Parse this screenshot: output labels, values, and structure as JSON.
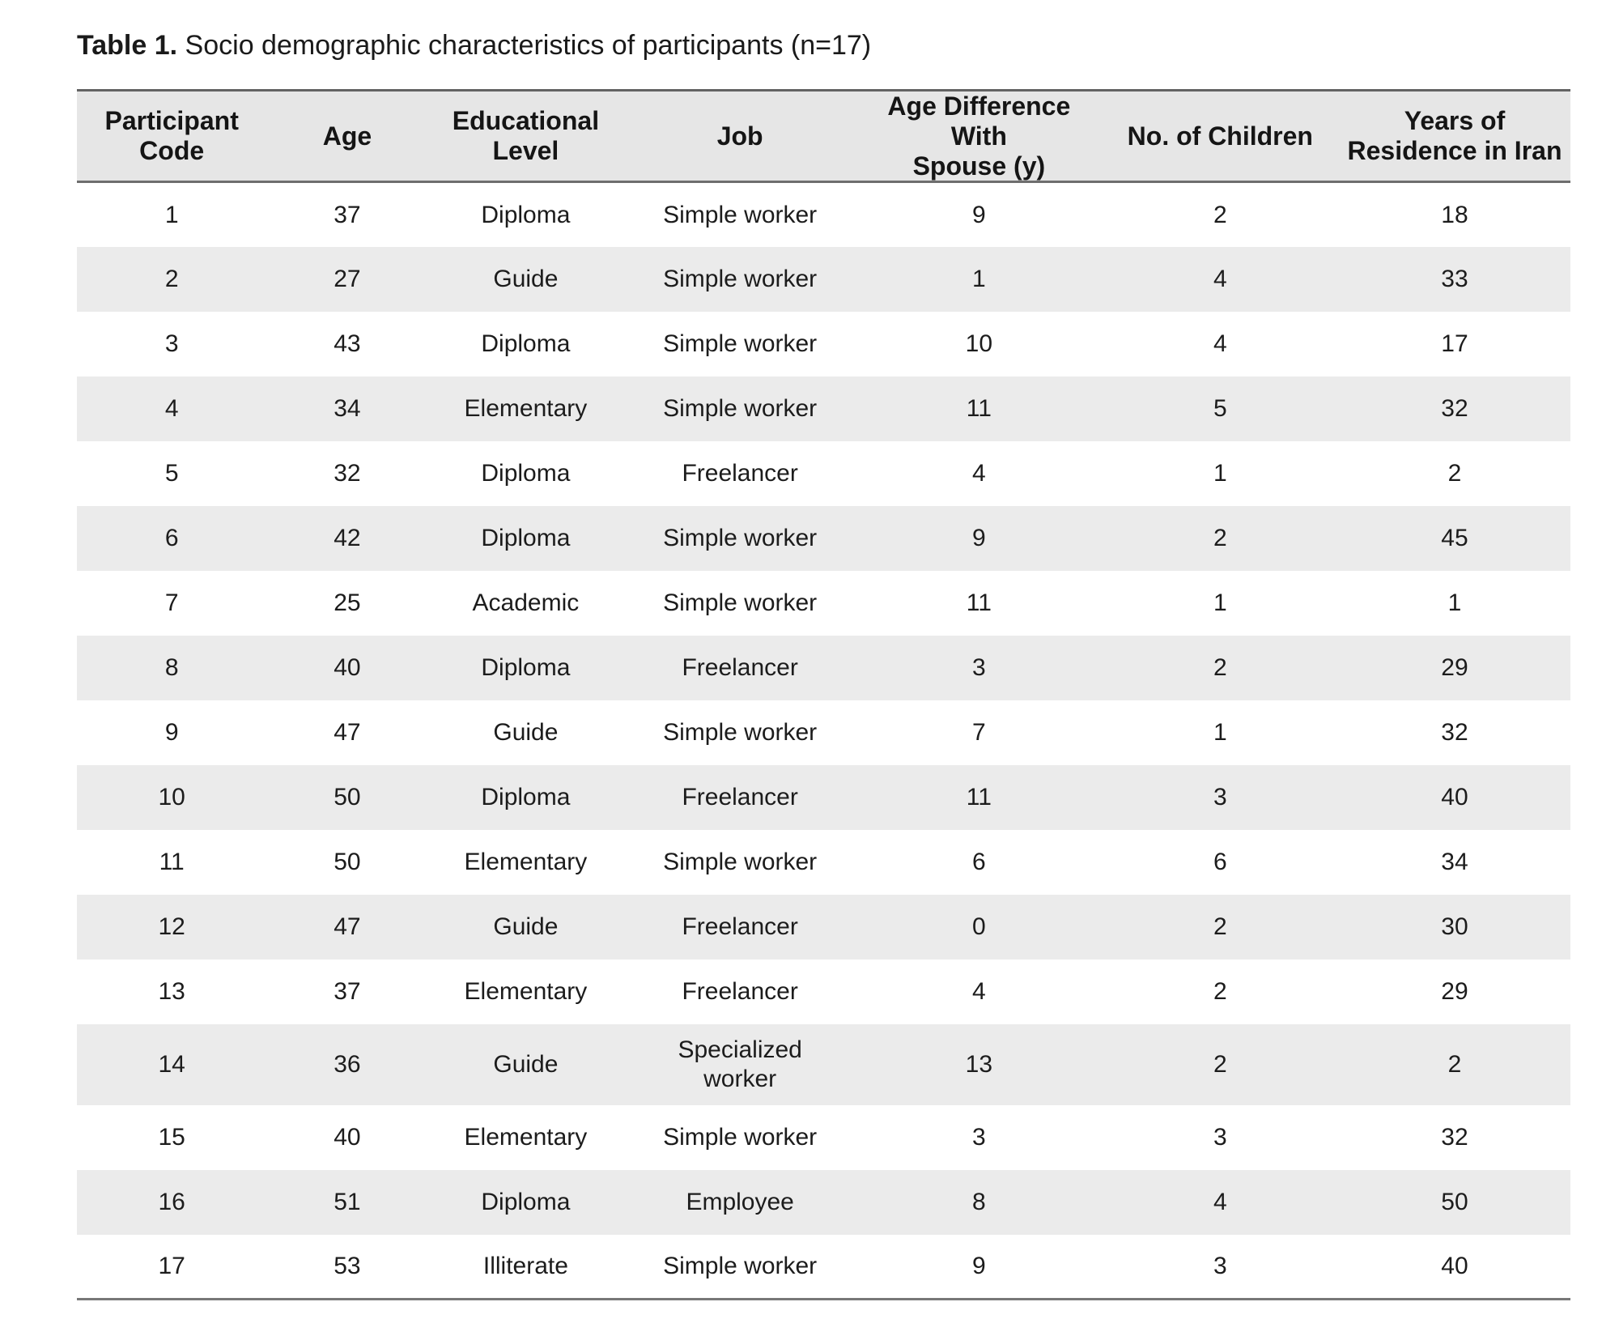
{
  "caption": {
    "label": "Table 1.",
    "text": "Socio demographic characteristics of participants (n=17)"
  },
  "table": {
    "columns": [
      {
        "name": "participant-code",
        "label": "Participant\nCode"
      },
      {
        "name": "age",
        "label": "Age"
      },
      {
        "name": "educational-level",
        "label": "Educational Level"
      },
      {
        "name": "job",
        "label": "Job"
      },
      {
        "name": "age-difference",
        "label": "Age Difference With\nSpouse (y)"
      },
      {
        "name": "no-of-children",
        "label": "No. of Children"
      },
      {
        "name": "years-residence",
        "label": "Years of\nResidence in Iran"
      }
    ],
    "rows": [
      [
        "1",
        "37",
        "Diploma",
        "Simple worker",
        "9",
        "2",
        "18"
      ],
      [
        "2",
        "27",
        "Guide",
        "Simple worker",
        "1",
        "4",
        "33"
      ],
      [
        "3",
        "43",
        "Diploma",
        "Simple worker",
        "10",
        "4",
        "17"
      ],
      [
        "4",
        "34",
        "Elementary",
        "Simple worker",
        "11",
        "5",
        "32"
      ],
      [
        "5",
        "32",
        "Diploma",
        "Freelancer",
        "4",
        "1",
        "2"
      ],
      [
        "6",
        "42",
        "Diploma",
        "Simple worker",
        "9",
        "2",
        "45"
      ],
      [
        "7",
        "25",
        "Academic",
        "Simple worker",
        "11",
        "1",
        "1"
      ],
      [
        "8",
        "40",
        "Diploma",
        "Freelancer",
        "3",
        "2",
        "29"
      ],
      [
        "9",
        "47",
        "Guide",
        "Simple worker",
        "7",
        "1",
        "32"
      ],
      [
        "10",
        "50",
        "Diploma",
        "Freelancer",
        "11",
        "3",
        "40"
      ],
      [
        "11",
        "50",
        "Elementary",
        "Simple worker",
        "6",
        "6",
        "34"
      ],
      [
        "12",
        "47",
        "Guide",
        "Freelancer",
        "0",
        "2",
        "30"
      ],
      [
        "13",
        "37",
        "Elementary",
        "Freelancer",
        "4",
        "2",
        "29"
      ],
      [
        "14",
        "36",
        "Guide",
        "Specialized\nworker",
        "13",
        "2",
        "2"
      ],
      [
        "15",
        "40",
        "Elementary",
        "Simple worker",
        "3",
        "3",
        "32"
      ],
      [
        "16",
        "51",
        "Diploma",
        "Employee",
        "8",
        "4",
        "50"
      ],
      [
        "17",
        "53",
        "Illiterate",
        "Simple worker",
        "9",
        "3",
        "40"
      ]
    ]
  },
  "colors": {
    "header_background": "#e6e6e6",
    "row_stripe": "#ebebeb",
    "border": "#6e6e6e",
    "text": "#1a1a1a"
  }
}
